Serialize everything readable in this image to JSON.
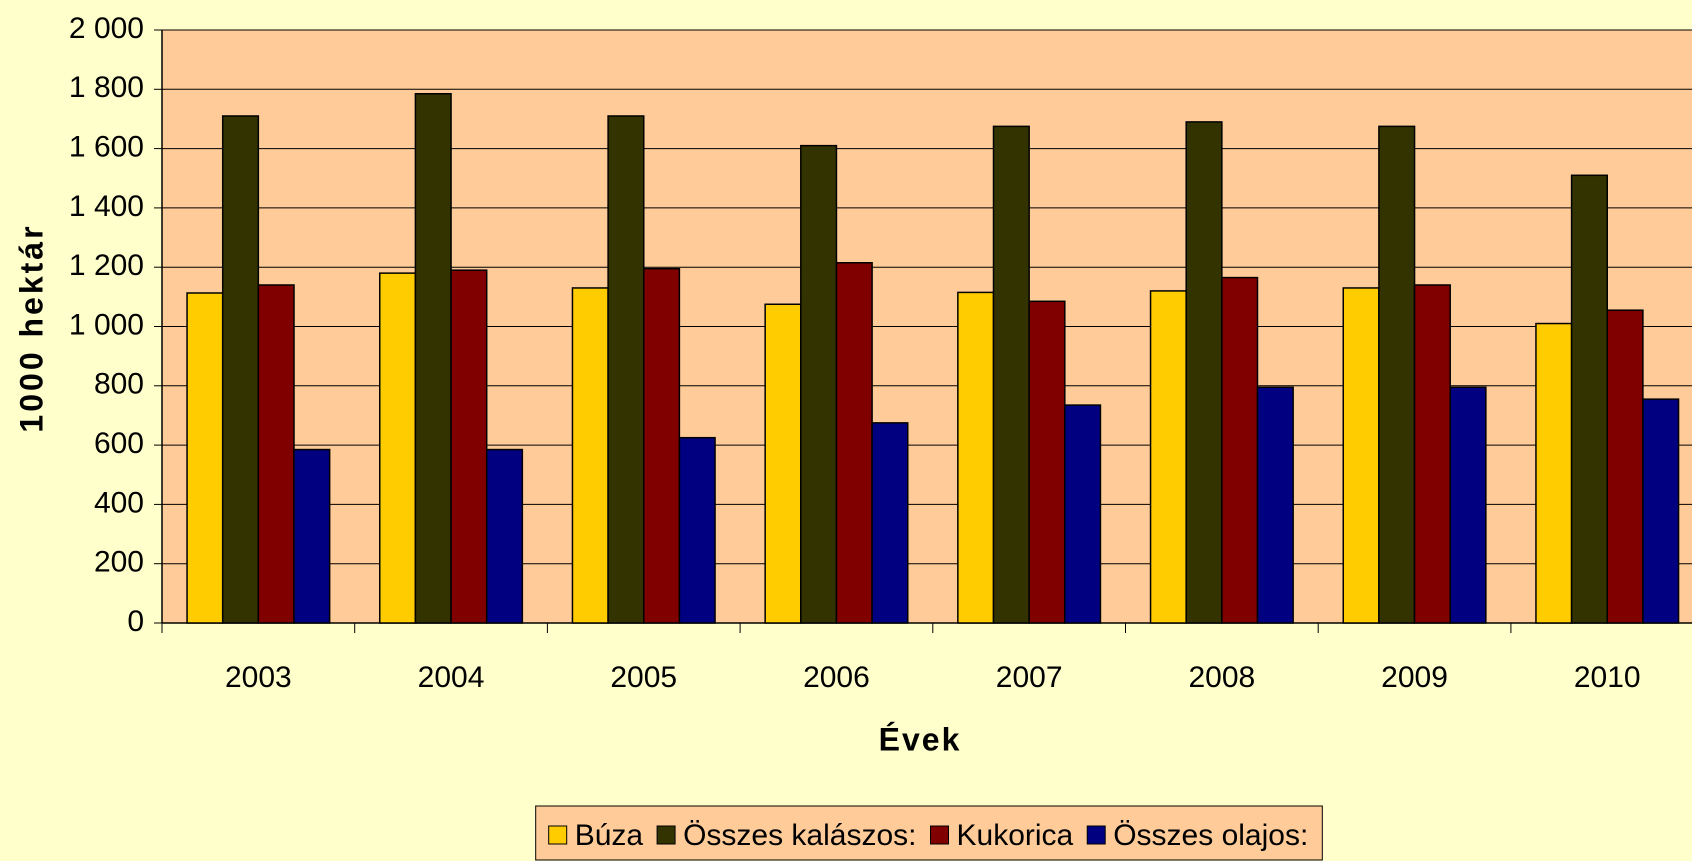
{
  "chart_data": {
    "type": "bar",
    "categories": [
      "2003",
      "2004",
      "2005",
      "2006",
      "2007",
      "2008",
      "2009",
      "2010"
    ],
    "series": [
      {
        "name": "Búza",
        "color": "#ffcc00",
        "values": [
          1113,
          1180,
          1130,
          1075,
          1115,
          1120,
          1130,
          1010
        ]
      },
      {
        "name": "Összes kalászos:",
        "color": "#333300",
        "values": [
          1710,
          1785,
          1710,
          1610,
          1675,
          1690,
          1675,
          1510
        ]
      },
      {
        "name": "Kukorica",
        "color": "#800000",
        "values": [
          1140,
          1190,
          1195,
          1215,
          1085,
          1165,
          1140,
          1055
        ]
      },
      {
        "name": "Összes olajos:",
        "color": "#000080",
        "values": [
          585,
          585,
          625,
          675,
          735,
          795,
          795,
          755
        ]
      }
    ],
    "ylim": [
      0,
      2000
    ],
    "yticks": [
      0,
      200,
      400,
      600,
      800,
      {
        "value": 1000,
        "label": "1 000"
      },
      {
        "value": 1200,
        "label": "1 200"
      },
      {
        "value": 1400,
        "label": "1 400"
      },
      {
        "value": 1600,
        "label": "1 600"
      },
      {
        "value": 1800,
        "label": "1 800"
      },
      {
        "value": 2000,
        "label": "2 000"
      }
    ],
    "ylabel": "1000 hektár",
    "xlabel": "Évek",
    "grid": true,
    "legend": "bottom"
  }
}
